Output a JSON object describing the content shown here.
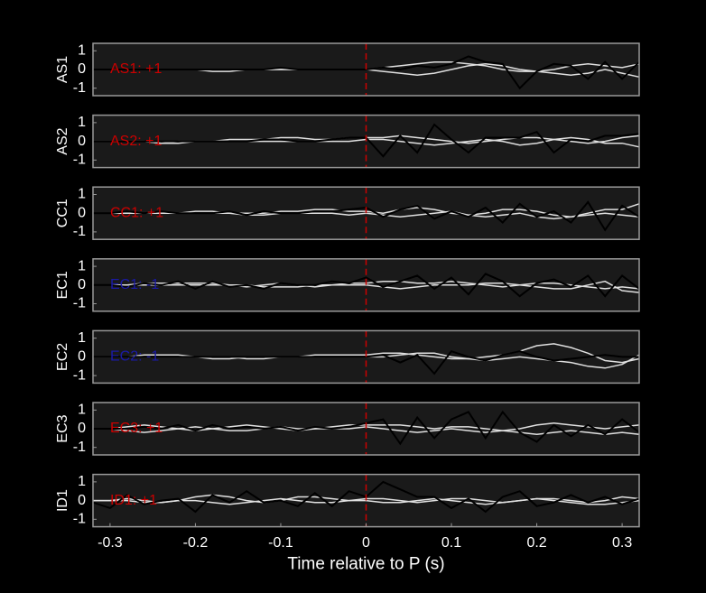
{
  "chart_data": [
    {
      "type": "line",
      "ylabel": "AS1",
      "annotation": "AS1: +1",
      "annotation_color": "#cc0000",
      "vline": 0,
      "vline_color": "#cc0000",
      "xlim": [
        -0.32,
        0.32
      ],
      "ylim": [
        -1.4,
        1.4
      ],
      "yticks": [
        -1,
        0,
        1
      ],
      "x": [
        -0.32,
        -0.3,
        -0.28,
        -0.26,
        -0.24,
        -0.22,
        -0.2,
        -0.18,
        -0.16,
        -0.14,
        -0.12,
        -0.1,
        -0.08,
        -0.06,
        -0.04,
        -0.02,
        0,
        0.02,
        0.04,
        0.06,
        0.08,
        0.1,
        0.12,
        0.14,
        0.16,
        0.18,
        0.2,
        0.22,
        0.24,
        0.26,
        0.28,
        0.3,
        0.32
      ],
      "series": [
        {
          "color": "#e0e0e0",
          "values": [
            0,
            0,
            0,
            0,
            0,
            0,
            0,
            0,
            0,
            0,
            0,
            0,
            0,
            0,
            0,
            0,
            0,
            0.1,
            0.2,
            0.3,
            0.4,
            0.4,
            0.3,
            0.2,
            0,
            -0.1,
            -0.1,
            0,
            0.2,
            0.3,
            0.2,
            0.1,
            0.3
          ]
        },
        {
          "color": "#e0e0e0",
          "values": [
            0,
            0,
            0,
            0,
            0,
            0,
            0,
            -0.1,
            -0.1,
            0,
            0,
            0,
            0,
            0,
            0,
            0,
            0,
            -0.1,
            -0.2,
            -0.3,
            -0.2,
            0,
            0.2,
            0.3,
            0.2,
            0,
            -0.1,
            -0.2,
            -0.3,
            -0.2,
            0,
            -0.2,
            -0.4
          ]
        },
        {
          "color": "#000000",
          "values": [
            0,
            0,
            0,
            0,
            0,
            0,
            0,
            0,
            0,
            0,
            0,
            0.1,
            0,
            0,
            0,
            0,
            0,
            0.1,
            0,
            0.2,
            0.1,
            0.3,
            0.7,
            0.4,
            0.3,
            -1,
            -0.1,
            0.3,
            0.2,
            -0.5,
            0.4,
            -0.5,
            0.4
          ]
        }
      ]
    },
    {
      "type": "line",
      "ylabel": "AS2",
      "annotation": "AS2: +1",
      "annotation_color": "#cc0000",
      "vline": 0,
      "vline_color": "#cc0000",
      "xlim": [
        -0.32,
        0.32
      ],
      "ylim": [
        -1.4,
        1.4
      ],
      "yticks": [
        -1,
        0,
        1
      ],
      "x": [
        -0.32,
        -0.3,
        -0.28,
        -0.26,
        -0.24,
        -0.22,
        -0.2,
        -0.18,
        -0.16,
        -0.14,
        -0.12,
        -0.1,
        -0.08,
        -0.06,
        -0.04,
        -0.02,
        0,
        0.02,
        0.04,
        0.06,
        0.08,
        0.1,
        0.12,
        0.14,
        0.16,
        0.18,
        0.2,
        0.22,
        0.24,
        0.26,
        0.28,
        0.3,
        0.32
      ],
      "series": [
        {
          "color": "#e0e0e0",
          "values": [
            0,
            0,
            0,
            0,
            -0.1,
            -0.1,
            0,
            0,
            0.1,
            0.1,
            0.1,
            0.2,
            0.2,
            0.1,
            0.1,
            0.2,
            0.2,
            0.2,
            0.3,
            0.2,
            0.1,
            0,
            -0.1,
            0,
            0.1,
            0.2,
            0.2,
            0.1,
            0,
            -0.1,
            0,
            0.2,
            0.3
          ]
        },
        {
          "color": "#e0e0e0",
          "values": [
            0,
            0,
            0,
            0,
            -0.1,
            0,
            0,
            0,
            0,
            0,
            0,
            0,
            0,
            0,
            0,
            0,
            0.1,
            0.1,
            0,
            -0.1,
            -0.2,
            -0.1,
            0,
            0.1,
            0,
            -0.2,
            -0.1,
            0.1,
            0.2,
            0.1,
            -0.1,
            -0.1,
            -0.3
          ]
        },
        {
          "color": "#000000",
          "values": [
            0,
            0,
            0,
            0,
            0,
            0,
            0,
            0,
            0,
            0,
            0.1,
            0.1,
            0,
            0,
            0.1,
            0.2,
            0.2,
            -0.8,
            0.3,
            -0.6,
            0.9,
            0.1,
            -0.6,
            0.2,
            0.2,
            0.2,
            0.5,
            -0.6,
            0.1,
            0,
            0.3,
            0.3,
            0.4
          ]
        }
      ]
    },
    {
      "type": "line",
      "ylabel": "CC1",
      "annotation": "CC1: +1",
      "annotation_color": "#cc0000",
      "vline": 0,
      "vline_color": "#cc0000",
      "xlim": [
        -0.32,
        0.32
      ],
      "ylim": [
        -1.4,
        1.4
      ],
      "yticks": [
        -1,
        0,
        1
      ],
      "x": [
        -0.32,
        -0.3,
        -0.28,
        -0.26,
        -0.24,
        -0.22,
        -0.2,
        -0.18,
        -0.16,
        -0.14,
        -0.12,
        -0.1,
        -0.08,
        -0.06,
        -0.04,
        -0.02,
        0,
        0.02,
        0.04,
        0.06,
        0.08,
        0.1,
        0.12,
        0.14,
        0.16,
        0.18,
        0.2,
        0.22,
        0.24,
        0.26,
        0.28,
        0.3,
        0.32
      ],
      "series": [
        {
          "color": "#e0e0e0",
          "values": [
            0,
            0,
            0,
            0,
            0,
            0,
            0.1,
            0.1,
            0,
            0,
            0,
            0.1,
            0.1,
            0.2,
            0.2,
            0.1,
            0.1,
            0,
            0.2,
            0.3,
            0.2,
            0,
            -0.1,
            0,
            0.2,
            0.2,
            0.1,
            -0.1,
            -0.2,
            0,
            0.2,
            0.2,
            0.5
          ]
        },
        {
          "color": "#e0e0e0",
          "values": [
            0,
            0,
            0,
            0,
            0,
            0,
            0,
            0,
            0,
            -0.1,
            -0.1,
            0,
            0,
            0,
            0,
            -0.1,
            0,
            -0.1,
            -0.2,
            -0.1,
            0,
            0.1,
            -0.1,
            -0.2,
            -0.1,
            0,
            -0.2,
            -0.3,
            -0.2,
            -0.1,
            0,
            -0.1,
            -0.2
          ]
        },
        {
          "color": "#000000",
          "values": [
            0,
            0,
            0.1,
            0,
            0.1,
            0,
            0,
            0,
            0.1,
            -0.1,
            0.1,
            0,
            0,
            0.1,
            0.1,
            0.2,
            0.3,
            -0.2,
            0.2,
            0.4,
            -0.3,
            0.1,
            -0.2,
            0.3,
            -0.5,
            0.5,
            -0.2,
            0.1,
            -0.5,
            0.6,
            -0.9,
            0.4,
            -0.2
          ]
        }
      ]
    },
    {
      "type": "line",
      "ylabel": "EC1",
      "annotation": "EC1: -1",
      "annotation_color": "#1a1aa6",
      "vline": 0,
      "vline_color": "#cc0000",
      "xlim": [
        -0.32,
        0.32
      ],
      "ylim": [
        -1.4,
        1.4
      ],
      "yticks": [
        -1,
        0,
        1
      ],
      "x": [
        -0.32,
        -0.3,
        -0.28,
        -0.26,
        -0.24,
        -0.22,
        -0.2,
        -0.18,
        -0.16,
        -0.14,
        -0.12,
        -0.1,
        -0.08,
        -0.06,
        -0.04,
        -0.02,
        0,
        0.02,
        0.04,
        0.06,
        0.08,
        0.1,
        0.12,
        0.14,
        0.16,
        0.18,
        0.2,
        0.22,
        0.24,
        0.26,
        0.28,
        0.3,
        0.32
      ],
      "series": [
        {
          "color": "#e0e0e0",
          "values": [
            0,
            0,
            0,
            0.1,
            0.1,
            0.1,
            0.1,
            0.1,
            0,
            -0.1,
            0,
            0.1,
            0,
            -0.1,
            0,
            0.1,
            0.1,
            0.2,
            0.2,
            0.1,
            0.1,
            0.2,
            0.1,
            0,
            -0.1,
            0,
            0.1,
            0.1,
            0,
            -0.1,
            -0.2,
            -0.1,
            -0.2
          ]
        },
        {
          "color": "#e0e0e0",
          "values": [
            0,
            0,
            0,
            0,
            0,
            0,
            0,
            0,
            0,
            0,
            -0.1,
            -0.1,
            -0.1,
            0,
            0,
            0,
            0,
            -0.1,
            -0.2,
            -0.1,
            0,
            0,
            0,
            0.1,
            0.1,
            0,
            -0.1,
            -0.2,
            -0.2,
            0,
            0.2,
            -0.3,
            -0.4
          ]
        },
        {
          "color": "#000000",
          "values": [
            0,
            0,
            -0.1,
            0.1,
            0,
            0.2,
            -0.2,
            0.2,
            -0.1,
            0,
            -0.2,
            0.1,
            0,
            0,
            0.2,
            0.1,
            0.4,
            -0.1,
            0.2,
            0.5,
            -0.2,
            0.4,
            -0.5,
            0.6,
            0.2,
            -0.6,
            0.1,
            0.3,
            -0.1,
            0.5,
            -0.6,
            0.5,
            -0.2
          ]
        }
      ]
    },
    {
      "type": "line",
      "ylabel": "EC2",
      "annotation": "EC2: -1",
      "annotation_color": "#1a1aa6",
      "vline": 0,
      "vline_color": "#cc0000",
      "xlim": [
        -0.32,
        0.32
      ],
      "ylim": [
        -1.4,
        1.4
      ],
      "yticks": [
        -1,
        0,
        1
      ],
      "x": [
        -0.32,
        -0.3,
        -0.28,
        -0.26,
        -0.24,
        -0.22,
        -0.2,
        -0.18,
        -0.16,
        -0.14,
        -0.12,
        -0.1,
        -0.08,
        -0.06,
        -0.04,
        -0.02,
        0,
        0.02,
        0.04,
        0.06,
        0.08,
        0.1,
        0.12,
        0.14,
        0.16,
        0.18,
        0.2,
        0.22,
        0.24,
        0.26,
        0.28,
        0.3,
        0.32
      ],
      "series": [
        {
          "color": "#e0e0e0",
          "values": [
            0,
            0,
            0,
            0.1,
            0.1,
            0.1,
            0,
            -0.1,
            -0.1,
            0,
            0,
            0,
            0,
            0.1,
            0.1,
            0.1,
            0.1,
            0.2,
            0.2,
            0.1,
            0,
            -0.1,
            -0.1,
            0,
            0.1,
            0.3,
            0.6,
            0.7,
            0.5,
            0.2,
            -0.2,
            -0.3,
            -0.1
          ]
        },
        {
          "color": "#e0e0e0",
          "values": [
            0,
            0,
            0,
            0,
            0,
            0,
            0,
            0,
            0,
            -0.1,
            -0.1,
            0,
            0,
            0,
            0,
            0,
            0,
            0,
            0.1,
            0.2,
            0.2,
            0,
            -0.1,
            -0.2,
            -0.1,
            0,
            -0.1,
            -0.2,
            -0.3,
            -0.5,
            -0.6,
            -0.4,
            0.1
          ]
        },
        {
          "color": "#000000",
          "values": [
            0,
            0,
            0,
            0,
            0,
            0,
            0,
            0,
            0,
            0,
            0,
            0,
            0,
            0,
            0,
            0,
            0,
            0.1,
            -0.3,
            0.1,
            -0.9,
            0.3,
            0,
            -0.2,
            0.1,
            0.3,
            0,
            -0.2,
            -0.1,
            0,
            0.1,
            0,
            0
          ]
        }
      ]
    },
    {
      "type": "line",
      "ylabel": "EC3",
      "annotation": "EC3: +1",
      "annotation_color": "#cc0000",
      "vline": 0,
      "vline_color": "#cc0000",
      "xlim": [
        -0.32,
        0.32
      ],
      "ylim": [
        -1.4,
        1.4
      ],
      "yticks": [
        -1,
        0,
        1
      ],
      "x": [
        -0.32,
        -0.3,
        -0.28,
        -0.26,
        -0.24,
        -0.22,
        -0.2,
        -0.18,
        -0.16,
        -0.14,
        -0.12,
        -0.1,
        -0.08,
        -0.06,
        -0.04,
        -0.02,
        0,
        0.02,
        0.04,
        0.06,
        0.08,
        0.1,
        0.12,
        0.14,
        0.16,
        0.18,
        0.2,
        0.22,
        0.24,
        0.26,
        0.28,
        0.3,
        0.32
      ],
      "series": [
        {
          "color": "#e0e0e0",
          "values": [
            0,
            0,
            0.1,
            0.2,
            0.1,
            0,
            -0.1,
            0,
            0.1,
            0.2,
            0.1,
            0,
            -0.1,
            0,
            0.1,
            0.2,
            0.2,
            0.2,
            0.2,
            0.1,
            0,
            0.1,
            0.1,
            0,
            -0.1,
            0,
            0.2,
            0.3,
            0.2,
            0.1,
            0,
            0.1,
            0.2
          ]
        },
        {
          "color": "#e0e0e0",
          "values": [
            0,
            0,
            -0.1,
            -0.2,
            -0.1,
            0,
            0.1,
            0,
            -0.1,
            -0.1,
            0,
            0.1,
            0,
            0,
            0,
            0,
            0.1,
            0,
            -0.1,
            -0.2,
            -0.1,
            0,
            -0.1,
            -0.2,
            -0.1,
            -0.2,
            -0.3,
            -0.2,
            -0.1,
            -0.2,
            -0.3,
            -0.2,
            -0.3
          ]
        },
        {
          "color": "#000000",
          "values": [
            0,
            0,
            0,
            0.1,
            0,
            0.2,
            -0.1,
            0.2,
            0,
            0.1,
            0,
            0.1,
            -0.1,
            0.1,
            0,
            0.1,
            0.3,
            0.5,
            -0.8,
            0.6,
            -0.5,
            0.5,
            0.9,
            -0.5,
            0.9,
            -0.2,
            -0.7,
            0.2,
            -0.4,
            0.2,
            -0.3,
            0.5,
            -0.2
          ]
        }
      ]
    },
    {
      "type": "line",
      "ylabel": "ID1",
      "annotation": "ID1: +1",
      "annotation_color": "#cc0000",
      "vline": 0,
      "vline_color": "#cc0000",
      "xlabel": "Time relative to P (s)",
      "xlim": [
        -0.32,
        0.32
      ],
      "ylim": [
        -1.4,
        1.4
      ],
      "yticks": [
        -1,
        0,
        1
      ],
      "xticks": [
        -0.3,
        -0.2,
        -0.1,
        0,
        0.1,
        0.2,
        0.3
      ],
      "x": [
        -0.32,
        -0.3,
        -0.28,
        -0.26,
        -0.24,
        -0.22,
        -0.2,
        -0.18,
        -0.16,
        -0.14,
        -0.12,
        -0.1,
        -0.08,
        -0.06,
        -0.04,
        -0.02,
        0,
        0.02,
        0.04,
        0.06,
        0.08,
        0.1,
        0.12,
        0.14,
        0.16,
        0.18,
        0.2,
        0.22,
        0.24,
        0.26,
        0.28,
        0.3,
        0.32
      ],
      "series": [
        {
          "color": "#e0e0e0",
          "values": [
            0,
            0,
            0.1,
            0,
            -0.1,
            0,
            0.2,
            0.3,
            0.2,
            0,
            -0.1,
            0,
            0.2,
            0.2,
            0.1,
            0,
            0.1,
            0.1,
            0,
            -0.1,
            0,
            0.1,
            0.1,
            0,
            -0.1,
            0,
            0.1,
            0.1,
            0,
            -0.1,
            0,
            0.2,
            0.1
          ]
        },
        {
          "color": "#e0e0e0",
          "values": [
            0,
            0,
            0,
            -0.1,
            -0.1,
            0,
            0,
            -0.1,
            -0.2,
            -0.1,
            0,
            0.1,
            0,
            -0.1,
            -0.1,
            0,
            0,
            -0.1,
            -0.1,
            0,
            0.1,
            0,
            -0.1,
            -0.2,
            -0.1,
            0,
            0.1,
            0,
            -0.1,
            -0.2,
            -0.2,
            -0.1,
            0
          ]
        },
        {
          "color": "#000000",
          "values": [
            -0.1,
            -0.4,
            0.3,
            -0.2,
            0,
            0.1,
            -0.6,
            0.3,
            -0.1,
            0.5,
            -0.1,
            0,
            -0.3,
            0.4,
            -0.3,
            0.5,
            0.2,
            1,
            0.6,
            0.2,
            0.2,
            -0.4,
            0.1,
            -0.6,
            0.2,
            0.5,
            -0.3,
            -0.1,
            0.3,
            -0.1,
            0.2,
            -0.2,
            0.1
          ]
        }
      ]
    }
  ]
}
